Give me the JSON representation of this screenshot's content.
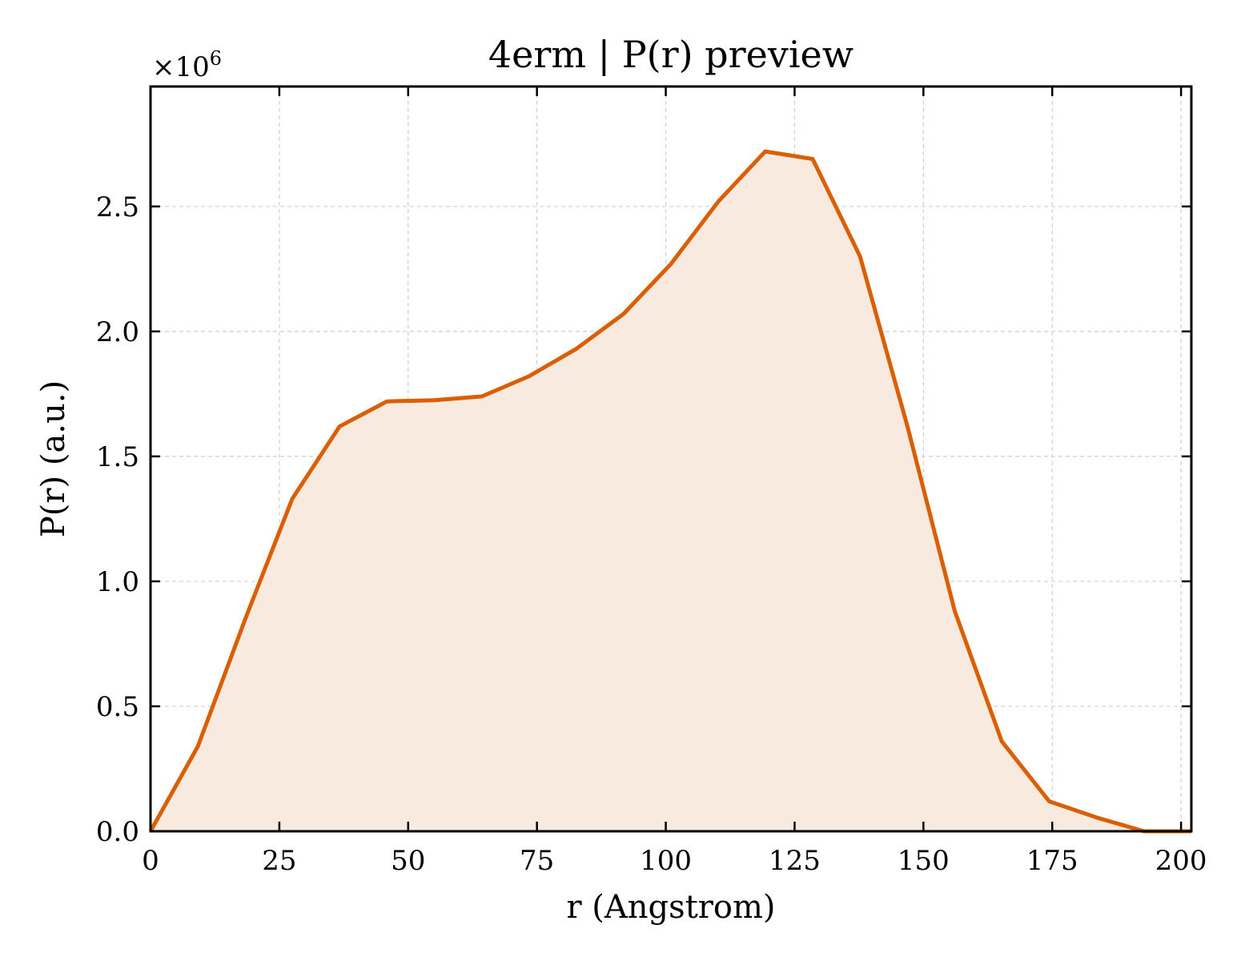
{
  "chart_data": {
    "type": "area",
    "title": "4erm | P(r) preview",
    "xlabel": "r (Angstrom)",
    "ylabel": "P(r) (a.u.)",
    "y_multiplier": "×10",
    "y_multiplier_exp": "6",
    "xlim": [
      0,
      202
    ],
    "ylim": [
      0,
      2.98
    ],
    "grid": true,
    "line_color": "#d95f02",
    "fill_color": "#f9eadf",
    "x_ticks": [
      0,
      25,
      50,
      75,
      100,
      125,
      150,
      175,
      200
    ],
    "x_tick_labels": [
      "0",
      "25",
      "50",
      "75",
      "100",
      "125",
      "150",
      "175",
      "200"
    ],
    "y_ticks": [
      0,
      0.5,
      1.0,
      1.5,
      2.0,
      2.5
    ],
    "y_tick_labels": [
      "0.0",
      "0.5",
      "1.0",
      "1.5",
      "2.0",
      "2.5"
    ],
    "series": [
      {
        "x": [
          0,
          9.2,
          18.4,
          27.5,
          36.7,
          45.9,
          55.1,
          64.3,
          73.4,
          82.6,
          91.8,
          101,
          110.2,
          119.3,
          128.5,
          137.7,
          146.9,
          156.1,
          165.2,
          174.4,
          183.6,
          192.8,
          202
        ],
        "values": [
          0,
          0.34,
          0.85,
          1.33,
          1.62,
          1.72,
          1.725,
          1.74,
          1.82,
          1.93,
          2.07,
          2.27,
          2.52,
          2.72,
          2.69,
          2.3,
          1.62,
          0.88,
          0.36,
          0.12,
          0.055,
          0.0,
          0.0
        ]
      }
    ]
  }
}
